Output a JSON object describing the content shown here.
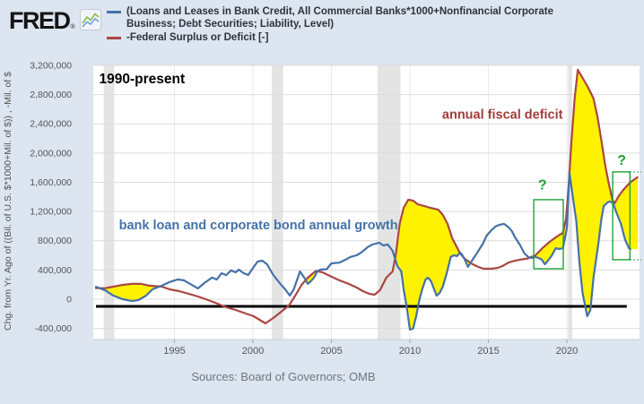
{
  "header": {
    "logo_text": "FRED",
    "registered_mark": "®",
    "legend": [
      {
        "color": "#4572a7",
        "label_lines": [
          "(Loans and Leases in Bank Credit, All Commercial Banks*1000+Nonfinancial Corporate",
          "Business; Debt Securities; Liability, Level)"
        ]
      },
      {
        "color": "#aa4643",
        "label_lines": [
          "-Federal Surplus or Deficit [-]"
        ]
      }
    ]
  },
  "footer": {
    "sources": "Sources: Board of Governors; OMB"
  },
  "chart_data": {
    "type": "line",
    "ylabel": "Chg. from Yr. Ago of ((Bil. of U.S. $*1000+Mil. of $)) , -Mil. of $",
    "xlim": [
      1989.83,
      2024.63
    ],
    "ylim": [
      -552000,
      3200000
    ],
    "grid": true,
    "legend_position": "top",
    "x_ticks": [
      {
        "value": 1995,
        "label": "1995"
      },
      {
        "value": 2000,
        "label": "2000"
      },
      {
        "value": 2005,
        "label": "2005"
      },
      {
        "value": 2010,
        "label": "2010"
      },
      {
        "value": 2015,
        "label": "2015"
      },
      {
        "value": 2020,
        "label": "2020"
      }
    ],
    "y_ticks": [
      {
        "value": 3200000,
        "label": "3,200,000"
      },
      {
        "value": 2800000,
        "label": "2,800,000"
      },
      {
        "value": 2400000,
        "label": "2,400,000"
      },
      {
        "value": 2000000,
        "label": "2,000,000"
      },
      {
        "value": 1600000,
        "label": "1,600,000"
      },
      {
        "value": 1200000,
        "label": "1,200,000"
      },
      {
        "value": 800000,
        "label": "800,000"
      },
      {
        "value": 400000,
        "label": "400,000"
      },
      {
        "value": 0,
        "label": "0"
      },
      {
        "value": -400000,
        "label": "-400,000"
      }
    ],
    "recession_bands": [
      [
        1990.5,
        1991.17
      ],
      [
        2001.2,
        2001.92
      ],
      [
        2007.95,
        2009.4
      ],
      [
        2020.08,
        2020.34
      ]
    ],
    "fill_between": {
      "color": "#fff200",
      "rule": "fill where deficit series is above loan-growth series"
    },
    "series": [
      {
        "name": "bank loan and corporate bond annual growth",
        "color": "#4572a7",
        "points": [
          [
            1990.0,
            170000
          ],
          [
            1990.6,
            120000
          ],
          [
            1991.1,
            50000
          ],
          [
            1991.7,
            0
          ],
          [
            1992.3,
            -25000
          ],
          [
            1992.7,
            -12000
          ],
          [
            1993.2,
            50000
          ],
          [
            1993.6,
            135000
          ],
          [
            1994.2,
            185000
          ],
          [
            1994.7,
            235000
          ],
          [
            1995.2,
            270000
          ],
          [
            1995.6,
            258000
          ],
          [
            1996.0,
            210000
          ],
          [
            1996.5,
            147000
          ],
          [
            1996.9,
            220000
          ],
          [
            1997.4,
            295000
          ],
          [
            1997.7,
            270000
          ],
          [
            1998.0,
            355000
          ],
          [
            1998.3,
            330000
          ],
          [
            1998.6,
            393000
          ],
          [
            1998.9,
            368000
          ],
          [
            1999.1,
            405000
          ],
          [
            1999.4,
            356000
          ],
          [
            1999.7,
            331000
          ],
          [
            2000.05,
            440000
          ],
          [
            2000.3,
            515000
          ],
          [
            2000.6,
            527000
          ],
          [
            2000.9,
            478000
          ],
          [
            2001.3,
            331000
          ],
          [
            2001.8,
            196000
          ],
          [
            2002.1,
            123000
          ],
          [
            2002.35,
            49000
          ],
          [
            2002.6,
            135000
          ],
          [
            2003.0,
            380000
          ],
          [
            2003.25,
            300000
          ],
          [
            2003.5,
            210000
          ],
          [
            2003.75,
            260000
          ],
          [
            2003.9,
            295000
          ],
          [
            2004.1,
            380000
          ],
          [
            2004.3,
            405000
          ],
          [
            2004.7,
            410000
          ],
          [
            2005.0,
            490000
          ],
          [
            2005.5,
            500000
          ],
          [
            2005.9,
            540000
          ],
          [
            2006.2,
            577000
          ],
          [
            2006.6,
            600000
          ],
          [
            2006.9,
            638000
          ],
          [
            2007.3,
            710000
          ],
          [
            2007.6,
            748000
          ],
          [
            2008.05,
            773000
          ],
          [
            2008.3,
            736000
          ],
          [
            2008.6,
            748000
          ],
          [
            2008.9,
            662000
          ],
          [
            2009.2,
            454000
          ],
          [
            2009.45,
            380000
          ],
          [
            2009.6,
            135000
          ],
          [
            2009.8,
            -110000
          ],
          [
            2010.0,
            -417000
          ],
          [
            2010.2,
            -405000
          ],
          [
            2010.4,
            -233000
          ],
          [
            2010.6,
            -12000
          ],
          [
            2010.8,
            147000
          ],
          [
            2011.0,
            270000
          ],
          [
            2011.15,
            294000
          ],
          [
            2011.35,
            245000
          ],
          [
            2011.7,
            49000
          ],
          [
            2011.9,
            86000
          ],
          [
            2012.1,
            172000
          ],
          [
            2012.35,
            356000
          ],
          [
            2012.6,
            577000
          ],
          [
            2012.8,
            601000
          ],
          [
            2013.0,
            590000
          ],
          [
            2013.2,
            640000
          ],
          [
            2013.35,
            601000
          ],
          [
            2013.5,
            540000
          ],
          [
            2013.7,
            442000
          ],
          [
            2014.0,
            540000
          ],
          [
            2014.3,
            638000
          ],
          [
            2014.65,
            760000
          ],
          [
            2014.9,
            871000
          ],
          [
            2015.2,
            945000
          ],
          [
            2015.45,
            994000
          ],
          [
            2015.7,
            1018000
          ],
          [
            2016.0,
            1031000
          ],
          [
            2016.3,
            982000
          ],
          [
            2016.5,
            932000
          ],
          [
            2016.7,
            847000
          ],
          [
            2017.0,
            748000
          ],
          [
            2017.3,
            626000
          ],
          [
            2017.55,
            577000
          ],
          [
            2017.75,
            564000
          ],
          [
            2018.0,
            577000
          ],
          [
            2018.2,
            564000
          ],
          [
            2018.4,
            540000
          ],
          [
            2018.6,
            478000
          ],
          [
            2018.85,
            540000
          ],
          [
            2019.05,
            601000
          ],
          [
            2019.3,
            699000
          ],
          [
            2019.5,
            687000
          ],
          [
            2019.75,
            699000
          ],
          [
            2020.0,
            970000
          ],
          [
            2020.17,
            1730000
          ],
          [
            2020.45,
            1300000
          ],
          [
            2020.6,
            1070000
          ],
          [
            2020.8,
            500000
          ],
          [
            2021.0,
            86000
          ],
          [
            2021.3,
            -233000
          ],
          [
            2021.5,
            -150000
          ],
          [
            2021.7,
            294000
          ],
          [
            2022.0,
            749000
          ],
          [
            2022.2,
            1100000
          ],
          [
            2022.35,
            1276000
          ],
          [
            2022.6,
            1325000
          ],
          [
            2022.75,
            1337000
          ],
          [
            2022.95,
            1313000
          ],
          [
            2023.15,
            1190000
          ],
          [
            2023.45,
            1031000
          ],
          [
            2023.7,
            822000
          ],
          [
            2023.95,
            700000
          ],
          [
            2024.05,
            687000
          ]
        ]
      },
      {
        "name": "-Federal Surplus or Deficit (annual fiscal deficit)",
        "color": "#aa4643",
        "points": [
          [
            1990.0,
            150000
          ],
          [
            1990.6,
            150000
          ],
          [
            1991.1,
            172000
          ],
          [
            1991.7,
            196000
          ],
          [
            1992.3,
            210000
          ],
          [
            1992.9,
            210000
          ],
          [
            1993.4,
            185000
          ],
          [
            1994.2,
            172000
          ],
          [
            1994.7,
            135000
          ],
          [
            1995.3,
            110000
          ],
          [
            1995.9,
            74000
          ],
          [
            1996.5,
            37000
          ],
          [
            1997.0,
            0
          ],
          [
            1997.6,
            -49000
          ],
          [
            1998.3,
            -110000
          ],
          [
            1998.9,
            -147000
          ],
          [
            1999.4,
            -185000
          ],
          [
            2000.05,
            -233000
          ],
          [
            2000.8,
            -331000
          ],
          [
            2001.3,
            -258000
          ],
          [
            2001.8,
            -172000
          ],
          [
            2002.3,
            -86000
          ],
          [
            2002.7,
            49000
          ],
          [
            2003.1,
            196000
          ],
          [
            2003.5,
            294000
          ],
          [
            2004.0,
            386000
          ],
          [
            2004.4,
            370000
          ],
          [
            2004.9,
            319000
          ],
          [
            2005.5,
            258000
          ],
          [
            2006.1,
            210000
          ],
          [
            2006.6,
            160000
          ],
          [
            2007.0,
            110000
          ],
          [
            2007.4,
            74000
          ],
          [
            2007.75,
            61000
          ],
          [
            2008.1,
            123000
          ],
          [
            2008.5,
            294000
          ],
          [
            2008.9,
            380000
          ],
          [
            2009.1,
            600000
          ],
          [
            2009.35,
            1030000
          ],
          [
            2009.6,
            1250000
          ],
          [
            2009.9,
            1362000
          ],
          [
            2010.2,
            1350000
          ],
          [
            2010.5,
            1300000
          ],
          [
            2010.9,
            1276000
          ],
          [
            2011.3,
            1251000
          ],
          [
            2011.8,
            1227000
          ],
          [
            2012.1,
            1153000
          ],
          [
            2012.4,
            1030000
          ],
          [
            2012.7,
            834000
          ],
          [
            2013.2,
            626000
          ],
          [
            2013.5,
            552000
          ],
          [
            2013.75,
            515000
          ],
          [
            2014.0,
            478000
          ],
          [
            2014.35,
            442000
          ],
          [
            2014.7,
            417000
          ],
          [
            2015.2,
            417000
          ],
          [
            2015.6,
            429000
          ],
          [
            2015.9,
            454000
          ],
          [
            2016.3,
            503000
          ],
          [
            2016.65,
            525000
          ],
          [
            2017.0,
            540000
          ],
          [
            2017.5,
            556000
          ],
          [
            2018.0,
            600000
          ],
          [
            2018.4,
            690000
          ],
          [
            2018.9,
            785000
          ],
          [
            2019.3,
            847000
          ],
          [
            2019.55,
            883000
          ],
          [
            2019.75,
            908000
          ],
          [
            2019.95,
            1100000
          ],
          [
            2020.1,
            1500000
          ],
          [
            2020.3,
            2170000
          ],
          [
            2020.5,
            2750000
          ],
          [
            2020.7,
            3140000
          ],
          [
            2021.0,
            3030000
          ],
          [
            2021.35,
            2900000
          ],
          [
            2021.7,
            2748000
          ],
          [
            2021.95,
            2500000
          ],
          [
            2022.2,
            2170000
          ],
          [
            2022.45,
            1830000
          ],
          [
            2022.65,
            1607000
          ],
          [
            2022.9,
            1362000
          ],
          [
            2023.05,
            1313000
          ],
          [
            2023.3,
            1410000
          ],
          [
            2023.55,
            1484000
          ],
          [
            2023.8,
            1545000
          ],
          [
            2024.1,
            1610000
          ],
          [
            2024.5,
            1669000
          ]
        ]
      }
    ],
    "annotations": {
      "era_label": {
        "text": "1990-present",
        "x": 1990.2,
        "y": 2955000,
        "color": "#000000",
        "size": 15.5,
        "weight": "bold",
        "anchor": "start"
      },
      "deficit_label": {
        "text": "annual fiscal deficit",
        "x": 2015.9,
        "y": 2470000,
        "color": "#a33c3c",
        "size": 14.5,
        "weight": "bold",
        "anchor": "middle"
      },
      "growth_label": {
        "text": "bank loan and corporate bond annual growth",
        "x": 2000.35,
        "y": 955000,
        "color": "#4572a7",
        "size": 14.5,
        "weight": "bold",
        "anchor": "middle"
      },
      "question_marks": [
        {
          "text": "?",
          "x": 2018.45,
          "y": 1500000,
          "color": "#1da237",
          "size": 16
        },
        {
          "text": "?",
          "x": 2023.5,
          "y": 1840000,
          "color": "#1da237",
          "size": 16
        }
      ],
      "highlight_boxes": [
        {
          "x0": 2017.89,
          "x1": 2019.77,
          "y0": 417000,
          "y1": 1362000,
          "color": "#1da237"
        },
        {
          "x0": 2022.92,
          "x1": 2024.02,
          "y0": 540000,
          "y1": 1742000,
          "color": "#1da237",
          "dotted_right_to": 2024.75
        }
      ],
      "zero_line": {
        "x0": 1990.0,
        "x1": 2023.82,
        "y": -98000,
        "color": "#000000",
        "width": 3
      }
    }
  }
}
